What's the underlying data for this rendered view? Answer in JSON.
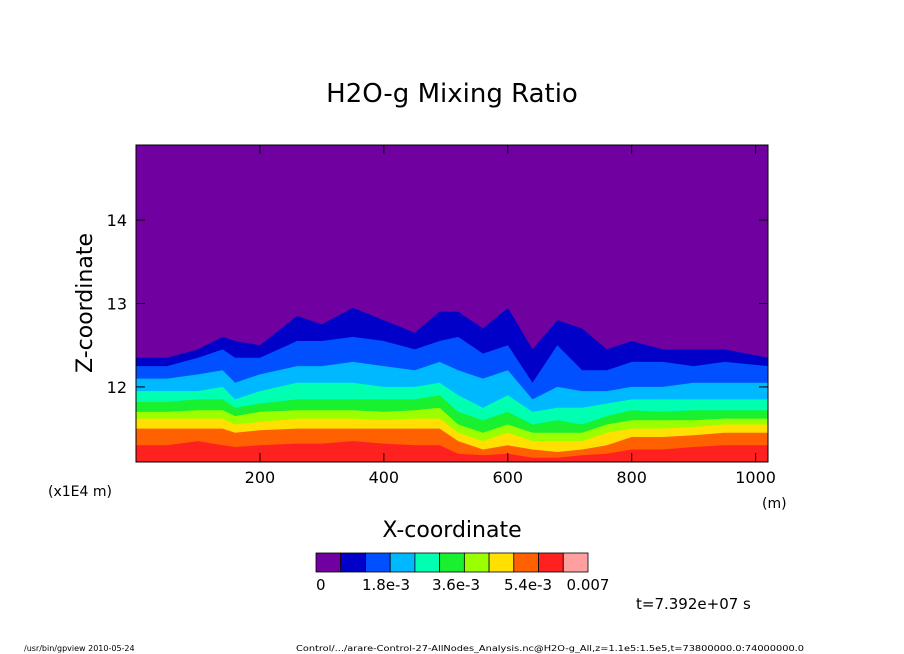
{
  "chart_data": {
    "type": "heatmap",
    "title": "H2O-g Mixing Ratio",
    "xlabel": "X-coordinate",
    "ylabel": "Z-coordinate",
    "x_unit": "(m)",
    "y_unit": "(x1E4 m)",
    "xlim": [
      0,
      1020
    ],
    "ylim": [
      11.1,
      14.9
    ],
    "x_ticks": [
      200,
      400,
      600,
      800,
      1000
    ],
    "y_ticks": [
      12,
      13,
      14
    ],
    "colorbar": {
      "colors": [
        "#7000a0",
        "#0000c8",
        "#0050ff",
        "#00b8ff",
        "#00ffb0",
        "#18f030",
        "#9cff00",
        "#ffe000",
        "#ff6000",
        "#ff2020",
        "#ffa0a0"
      ],
      "labels": [
        "0",
        "1.8e-3",
        "3.6e-3",
        "5.4e-3",
        "0.007"
      ]
    },
    "band_boundaries": {
      "x": [
        0,
        50,
        100,
        140,
        160,
        200,
        260,
        300,
        350,
        400,
        450,
        490,
        520,
        560,
        600,
        640,
        680,
        720,
        760,
        800,
        850,
        900,
        950,
        1020
      ],
      "levels": [
        [
          12.35,
          12.35,
          12.45,
          12.6,
          12.55,
          12.5,
          12.85,
          12.75,
          12.95,
          12.8,
          12.65,
          12.9,
          12.9,
          12.7,
          12.95,
          12.45,
          12.8,
          12.7,
          12.45,
          12.55,
          12.45,
          12.45,
          12.45,
          12.35
        ],
        [
          12.25,
          12.25,
          12.35,
          12.45,
          12.35,
          12.35,
          12.55,
          12.55,
          12.6,
          12.55,
          12.45,
          12.55,
          12.6,
          12.4,
          12.5,
          12.05,
          12.5,
          12.2,
          12.2,
          12.3,
          12.3,
          12.25,
          12.3,
          12.25
        ],
        [
          12.1,
          12.1,
          12.15,
          12.2,
          12.05,
          12.15,
          12.25,
          12.25,
          12.3,
          12.25,
          12.2,
          12.3,
          12.2,
          12.1,
          12.2,
          11.85,
          12.0,
          11.95,
          11.95,
          12.0,
          12.0,
          12.05,
          12.05,
          12.05
        ],
        [
          11.95,
          11.95,
          11.95,
          12.0,
          11.85,
          11.95,
          12.05,
          12.05,
          12.05,
          12.0,
          12.0,
          12.05,
          11.9,
          11.75,
          11.9,
          11.7,
          11.75,
          11.75,
          11.8,
          11.85,
          11.85,
          11.85,
          11.85,
          11.85
        ],
        [
          11.82,
          11.82,
          11.85,
          11.85,
          11.75,
          11.8,
          11.85,
          11.85,
          11.85,
          11.85,
          11.85,
          11.9,
          11.7,
          11.6,
          11.7,
          11.55,
          11.6,
          11.55,
          11.65,
          11.72,
          11.7,
          11.72,
          11.72,
          11.72
        ],
        [
          11.7,
          11.7,
          11.72,
          11.72,
          11.65,
          11.7,
          11.72,
          11.72,
          11.72,
          11.7,
          11.72,
          11.75,
          11.55,
          11.45,
          11.55,
          11.45,
          11.45,
          11.45,
          11.55,
          11.6,
          11.6,
          11.6,
          11.62,
          11.62
        ],
        [
          11.62,
          11.62,
          11.62,
          11.62,
          11.55,
          11.58,
          11.62,
          11.62,
          11.62,
          11.6,
          11.62,
          11.62,
          11.45,
          11.35,
          11.45,
          11.35,
          11.35,
          11.35,
          11.45,
          11.5,
          11.5,
          11.52,
          11.55,
          11.55
        ],
        [
          11.5,
          11.5,
          11.5,
          11.5,
          11.45,
          11.48,
          11.5,
          11.5,
          11.5,
          11.5,
          11.5,
          11.5,
          11.35,
          11.25,
          11.3,
          11.25,
          11.22,
          11.25,
          11.3,
          11.4,
          11.4,
          11.42,
          11.45,
          11.45
        ],
        [
          11.3,
          11.3,
          11.35,
          11.3,
          11.28,
          11.3,
          11.32,
          11.32,
          11.35,
          11.32,
          11.3,
          11.3,
          11.2,
          11.18,
          11.2,
          11.15,
          11.15,
          11.18,
          11.2,
          11.25,
          11.25,
          11.28,
          11.3,
          11.3
        ]
      ]
    }
  },
  "annotations": {
    "time": "t=7.392e+07 s",
    "footer_left": "/usr/bin/gpview   2010-05-24",
    "footer_right": "Control/.../arare-Control-27-AllNodes_Analysis.nc@H2O-g_All,z=1.1e5:1.5e5,t=73800000.0:74000000.0"
  }
}
